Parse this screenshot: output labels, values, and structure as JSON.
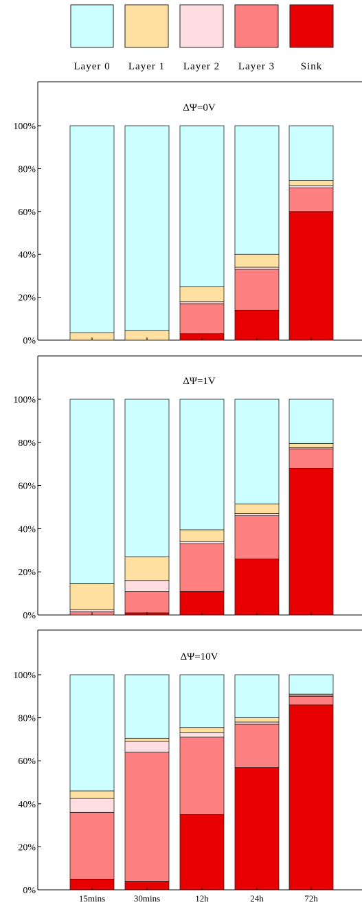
{
  "chart_data": {
    "type": "bar",
    "stacked": true,
    "categories": [
      "15mins",
      "30mins",
      "12h",
      "24h",
      "72h"
    ],
    "stack_order": [
      "Sink",
      "Layer 3",
      "Layer 2",
      "Layer 1",
      "Layer 0"
    ],
    "legend": [
      {
        "name": "Layer 0",
        "color": "#ccffff"
      },
      {
        "name": "Layer 1",
        "color": "#ffe0a0"
      },
      {
        "name": "Layer 2",
        "color": "#ffdde0"
      },
      {
        "name": "Layer 3",
        "color": "#ff8080"
      },
      {
        "name": "Sink",
        "color": "#e60000"
      }
    ],
    "legend_placement": "top",
    "ylim": [
      0,
      120
    ],
    "yticks": [
      "0%",
      "20%",
      "40%",
      "60%",
      "80%",
      "100%"
    ],
    "grid": false,
    "panels": [
      {
        "title": "ΔΨ=0V",
        "series": [
          {
            "name": "Sink",
            "values": [
              0,
              0,
              3,
              14,
              60
            ]
          },
          {
            "name": "Layer 3",
            "values": [
              0,
              0,
              14,
              19,
              11
            ]
          },
          {
            "name": "Layer 2",
            "values": [
              0,
              0,
              1,
              1,
              1
            ]
          },
          {
            "name": "Layer 1",
            "values": [
              3.5,
              4.5,
              7,
              6,
              2.5
            ]
          },
          {
            "name": "Layer 0",
            "values": [
              96.5,
              95.5,
              75,
              60,
              25.5
            ]
          }
        ]
      },
      {
        "title": "ΔΨ=1V",
        "series": [
          {
            "name": "Sink",
            "values": [
              0,
              1,
              11,
              26,
              68
            ]
          },
          {
            "name": "Layer 3",
            "values": [
              1.5,
              10,
              22,
              20,
              9
            ]
          },
          {
            "name": "Layer 2",
            "values": [
              1,
              5,
              1,
              1,
              0.5
            ]
          },
          {
            "name": "Layer 1",
            "values": [
              12,
              11,
              5.5,
              4.5,
              2
            ]
          },
          {
            "name": "Layer 0",
            "values": [
              85.5,
              73,
              60.5,
              48.5,
              20.5
            ]
          }
        ]
      },
      {
        "title": "ΔΨ=10V",
        "series": [
          {
            "name": "Sink",
            "values": [
              5,
              4,
              35,
              57,
              86
            ]
          },
          {
            "name": "Layer 3",
            "values": [
              31,
              60,
              36,
              20,
              4
            ]
          },
          {
            "name": "Layer 2",
            "values": [
              6.5,
              5,
              2,
              1,
              0.5
            ]
          },
          {
            "name": "Layer 1",
            "values": [
              3.5,
              1.5,
              2.5,
              2,
              0.5
            ]
          },
          {
            "name": "Layer 0",
            "values": [
              54,
              29.5,
              24.5,
              20,
              9
            ]
          }
        ]
      }
    ]
  }
}
